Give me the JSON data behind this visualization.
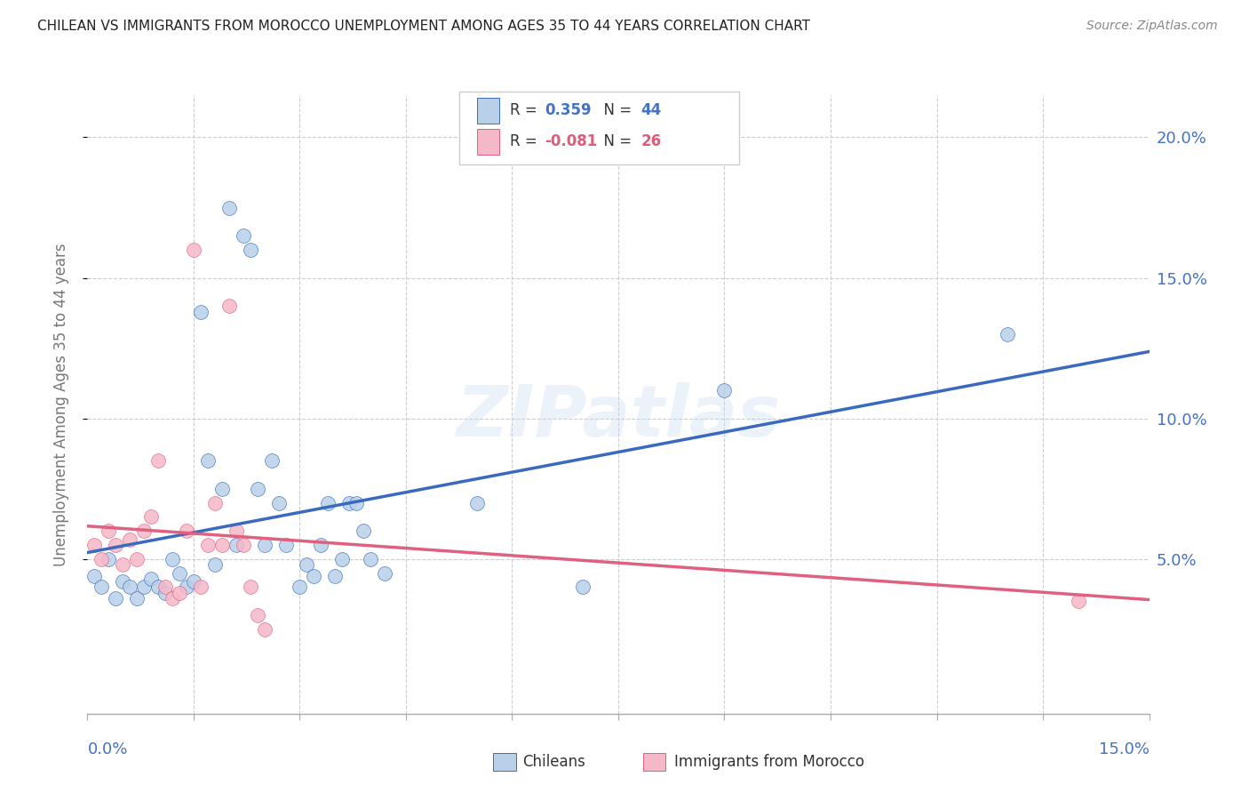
{
  "title": "CHILEAN VS IMMIGRANTS FROM MOROCCO UNEMPLOYMENT AMONG AGES 35 TO 44 YEARS CORRELATION CHART",
  "source": "Source: ZipAtlas.com",
  "ylabel": "Unemployment Among Ages 35 to 44 years",
  "xlim": [
    0.0,
    0.15
  ],
  "ylim": [
    -0.005,
    0.215
  ],
  "yticks": [
    0.05,
    0.1,
    0.15,
    0.2
  ],
  "ytick_labels": [
    "5.0%",
    "10.0%",
    "15.0%",
    "20.0%"
  ],
  "legend1_R": "0.359",
  "legend1_N": "44",
  "legend2_R": "-0.081",
  "legend2_N": "26",
  "chileans_fill": "#b8d0e8",
  "morocco_fill": "#f5b8c8",
  "line_blue": "#3a6abf",
  "line_pink": "#e06080",
  "text_blue": "#4472c4",
  "text_pink": "#e05c7a",
  "watermark": "ZIPatlas",
  "chileans_x": [
    0.001,
    0.002,
    0.003,
    0.004,
    0.005,
    0.006,
    0.007,
    0.008,
    0.009,
    0.01,
    0.011,
    0.012,
    0.013,
    0.014,
    0.015,
    0.016,
    0.017,
    0.018,
    0.019,
    0.02,
    0.021,
    0.022,
    0.023,
    0.024,
    0.025,
    0.026,
    0.027,
    0.028,
    0.03,
    0.031,
    0.032,
    0.033,
    0.034,
    0.035,
    0.036,
    0.037,
    0.038,
    0.039,
    0.04,
    0.042,
    0.055,
    0.07,
    0.09,
    0.13
  ],
  "chileans_y": [
    0.044,
    0.04,
    0.05,
    0.036,
    0.042,
    0.04,
    0.036,
    0.04,
    0.043,
    0.04,
    0.038,
    0.05,
    0.045,
    0.04,
    0.042,
    0.138,
    0.085,
    0.048,
    0.075,
    0.175,
    0.055,
    0.165,
    0.16,
    0.075,
    0.055,
    0.085,
    0.07,
    0.055,
    0.04,
    0.048,
    0.044,
    0.055,
    0.07,
    0.044,
    0.05,
    0.07,
    0.07,
    0.06,
    0.05,
    0.045,
    0.07,
    0.04,
    0.11,
    0.13
  ],
  "morocco_x": [
    0.001,
    0.002,
    0.003,
    0.004,
    0.005,
    0.006,
    0.007,
    0.008,
    0.009,
    0.01,
    0.011,
    0.012,
    0.013,
    0.014,
    0.015,
    0.016,
    0.017,
    0.018,
    0.019,
    0.02,
    0.021,
    0.022,
    0.023,
    0.024,
    0.025,
    0.14
  ],
  "morocco_y": [
    0.055,
    0.05,
    0.06,
    0.055,
    0.048,
    0.057,
    0.05,
    0.06,
    0.065,
    0.085,
    0.04,
    0.036,
    0.038,
    0.06,
    0.16,
    0.04,
    0.055,
    0.07,
    0.055,
    0.14,
    0.06,
    0.055,
    0.04,
    0.03,
    0.025,
    0.035
  ]
}
